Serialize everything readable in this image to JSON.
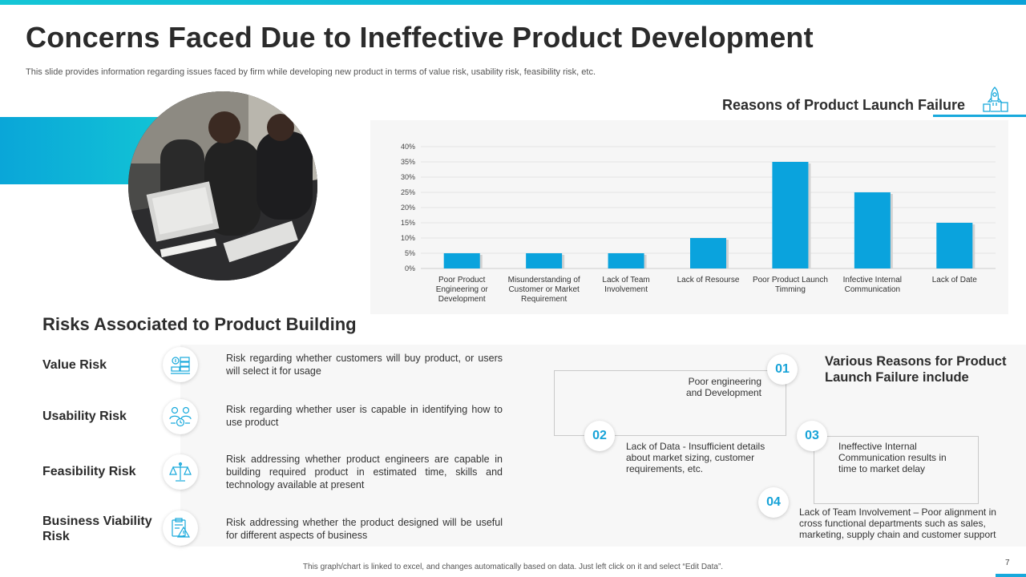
{
  "header": {
    "title_bold": "Concerns Faced",
    "title_rest": " Due to Ineffective Product Development",
    "subtitle": "This slide provides information regarding issues faced by firm while developing new product in terms of value risk, usability risk, feasibility risk, etc."
  },
  "chart_data": {
    "type": "bar",
    "title": "Reasons of Product Launch Failure",
    "categories": [
      [
        "Poor Product",
        "Engineering or",
        "Development"
      ],
      [
        "Misunderstanding of",
        "Customer or Market",
        "Requirement"
      ],
      [
        "Lack of Team",
        "Involvement"
      ],
      [
        "Lack of Resourse"
      ],
      [
        "Poor Product Launch",
        "Timming"
      ],
      [
        "Infective Internal",
        "Communication"
      ],
      [
        "Lack of Date"
      ]
    ],
    "values": [
      5,
      5,
      5,
      10,
      35,
      25,
      15
    ],
    "yticks": [
      "0%",
      "5%",
      "10%",
      "15%",
      "20%",
      "25%",
      "30%",
      "35%",
      "40%"
    ],
    "ylim": [
      0,
      40
    ],
    "grid": true,
    "bar_color": "#0aa3dd",
    "xlabel": "",
    "ylabel": ""
  },
  "risks": {
    "title": "Risks Associated to Product Building",
    "items": [
      {
        "name": "Value Risk",
        "icon": "money-stack-icon",
        "desc": "Risk regarding whether customers will buy product, or users will select it for usage"
      },
      {
        "name": "Usability Risk",
        "icon": "users-clock-icon",
        "desc": "Risk regarding whether user is capable in identifying how to use product"
      },
      {
        "name": "Feasibility Risk",
        "icon": "balance-scale-icon",
        "desc": "Risk addressing whether product engineers are capable in building required product in estimated time, skills and technology available at present"
      },
      {
        "name": "Business Viability Risk",
        "icon": "clipboard-warning-icon",
        "desc": "Risk addressing whether the product designed will be useful for different aspects of business"
      }
    ]
  },
  "reasons": {
    "heading": "Various Reasons for Product Launch Failure include",
    "items": [
      {
        "num": "01",
        "text": "Poor engineering and Development"
      },
      {
        "num": "02",
        "text": "Lack of Data - Insufficient details about market sizing, customer requirements, etc."
      },
      {
        "num": "03",
        "text": "Ineffective Internal Communication results in time to market delay"
      },
      {
        "num": "04",
        "text": "Lack of Team Involvement – Poor alignment in cross functional departments such as sales, marketing, supply chain and customer support"
      }
    ]
  },
  "footer": {
    "note": "This graph/chart is linked to excel, and changes automatically based on data. Just left click on it and select “Edit Data”.",
    "page": "7"
  },
  "colors": {
    "accent": "#18a9dc",
    "teal": "#12c3d6"
  }
}
